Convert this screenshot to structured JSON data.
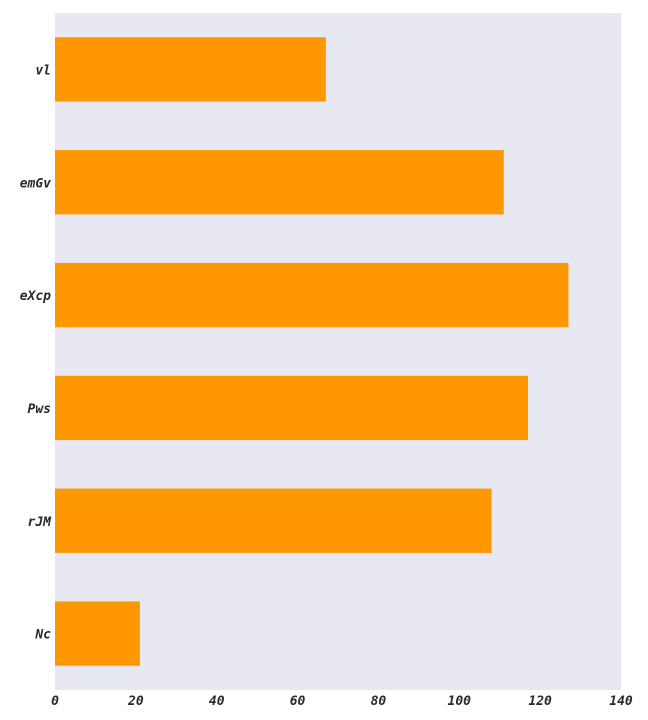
{
  "chart_data": {
    "type": "bar",
    "orientation": "horizontal",
    "categories": [
      "vl",
      "emGv",
      "eXcp",
      "Pws",
      "rJM",
      "Nc"
    ],
    "values": [
      67,
      111,
      127,
      117,
      108,
      21
    ],
    "xlim": [
      0,
      140
    ],
    "xticks": [
      0,
      20,
      40,
      60,
      80,
      100,
      120,
      140
    ],
    "title": "",
    "xlabel": "",
    "ylabel": "",
    "grid": false,
    "colors": {
      "bar": "#ff9800",
      "plot_background": "#e8e8f2"
    }
  }
}
